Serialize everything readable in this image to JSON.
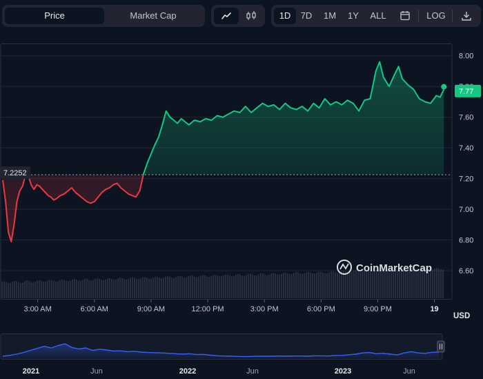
{
  "toolbar": {
    "metric_tabs": [
      "Price",
      "Market Cap"
    ],
    "active_metric": "Price",
    "chart_type_icons": [
      "line-chart-icon",
      "candlestick-icon"
    ],
    "ranges": [
      "1D",
      "7D",
      "1M",
      "1Y",
      "ALL"
    ],
    "active_range": "1D",
    "calendar_icon": "calendar-icon",
    "log_label": "LOG",
    "download_icon": "download-icon"
  },
  "chart": {
    "watermark": "CoinMarketCap",
    "currency_label": "USD",
    "colors": {
      "up": "#16c784",
      "down": "#ea3943",
      "nav_line": "#3861fb",
      "background": "#0d1421"
    }
  },
  "chart_data": {
    "type": "line",
    "title": "",
    "xlabel": "",
    "ylabel": "",
    "y_ticks": [
      6.6,
      6.8,
      7.0,
      7.2,
      7.4,
      7.6,
      7.8,
      8.0
    ],
    "ylim": [
      6.43,
      8.12
    ],
    "x_tick_labels": [
      "3:00 AM",
      "6:00 AM",
      "9:00 AM",
      "12:00 PM",
      "3:00 PM",
      "6:00 PM",
      "9:00 PM",
      "19"
    ],
    "x_tick_hours": [
      3,
      6,
      9,
      12,
      15,
      18,
      21,
      24
    ],
    "x_range_hours": [
      1.15,
      24.6
    ],
    "reference_price": 7.2252,
    "reference_label": "7.2252",
    "current_price": 7.77,
    "current_label": "7.77",
    "grid": true,
    "series": [
      {
        "x": [
          1.15,
          1.3,
          1.45,
          1.6,
          1.75,
          1.9,
          2.05,
          2.2,
          2.35,
          2.5,
          2.65,
          2.8,
          2.95,
          3.1,
          3.25,
          3.4,
          3.55,
          3.7,
          3.85,
          4.0,
          4.2,
          4.4,
          4.6,
          4.8,
          5.0,
          5.2,
          5.4,
          5.6,
          5.8,
          6.0,
          6.2,
          6.4,
          6.6,
          6.8,
          7.0,
          7.2,
          7.4,
          7.6,
          7.8,
          8.0,
          8.2,
          8.4,
          8.6,
          8.8,
          9.0,
          9.2,
          9.4,
          9.6,
          9.8,
          10.0,
          10.2,
          10.4,
          10.6,
          10.8,
          11.0,
          11.3,
          11.6,
          11.9,
          12.2,
          12.5,
          12.8,
          13.1,
          13.4,
          13.7,
          14.0,
          14.3,
          14.6,
          14.9,
          15.2,
          15.5,
          15.8,
          16.1,
          16.4,
          16.7,
          17.0,
          17.3,
          17.6,
          17.9,
          18.2,
          18.5,
          18.8,
          19.1,
          19.4,
          19.7,
          20.0,
          20.3,
          20.6,
          20.9,
          21.1,
          21.3,
          21.6,
          21.9,
          22.1,
          22.3,
          22.6,
          22.9,
          23.2,
          23.5,
          23.8,
          24.1,
          24.3,
          24.5
        ],
        "y": [
          7.19,
          7.05,
          6.85,
          6.79,
          6.9,
          7.05,
          7.12,
          7.15,
          7.22,
          7.22,
          7.16,
          7.13,
          7.16,
          7.15,
          7.13,
          7.11,
          7.09,
          7.08,
          7.06,
          7.07,
          7.09,
          7.1,
          7.12,
          7.14,
          7.11,
          7.09,
          7.07,
          7.05,
          7.04,
          7.05,
          7.08,
          7.11,
          7.13,
          7.14,
          7.16,
          7.17,
          7.14,
          7.12,
          7.1,
          7.09,
          7.08,
          7.12,
          7.23,
          7.3,
          7.36,
          7.42,
          7.47,
          7.55,
          7.64,
          7.6,
          7.58,
          7.56,
          7.59,
          7.57,
          7.55,
          7.58,
          7.57,
          7.59,
          7.58,
          7.61,
          7.6,
          7.62,
          7.64,
          7.63,
          7.67,
          7.63,
          7.66,
          7.69,
          7.67,
          7.68,
          7.65,
          7.69,
          7.66,
          7.65,
          7.67,
          7.64,
          7.69,
          7.66,
          7.72,
          7.68,
          7.7,
          7.68,
          7.71,
          7.69,
          7.64,
          7.71,
          7.72,
          7.9,
          7.96,
          7.86,
          7.8,
          7.88,
          7.93,
          7.85,
          7.81,
          7.78,
          7.72,
          7.7,
          7.69,
          7.74,
          7.73,
          7.78
        ]
      }
    ]
  },
  "navigator": {
    "x_labels": [
      "2021",
      "Jun",
      "2022",
      "Jun",
      "2023",
      "Jun"
    ],
    "handle_icon": "pause-handle-icon",
    "values": [
      0.1,
      0.14,
      0.2,
      0.28,
      0.38,
      0.48,
      0.58,
      0.5,
      0.62,
      0.7,
      0.52,
      0.45,
      0.5,
      0.38,
      0.44,
      0.4,
      0.35,
      0.36,
      0.32,
      0.34,
      0.3,
      0.28,
      0.27,
      0.26,
      0.24,
      0.22,
      0.2,
      0.22,
      0.18,
      0.19,
      0.15,
      0.12,
      0.11,
      0.1,
      0.09,
      0.08,
      0.09,
      0.1,
      0.1,
      0.1,
      0.11,
      0.1,
      0.11,
      0.11,
      0.1,
      0.12,
      0.12,
      0.11,
      0.13,
      0.14,
      0.17,
      0.2,
      0.26,
      0.28,
      0.22,
      0.24,
      0.2,
      0.16,
      0.26,
      0.32,
      0.26,
      0.24,
      0.29,
      0.3
    ]
  }
}
